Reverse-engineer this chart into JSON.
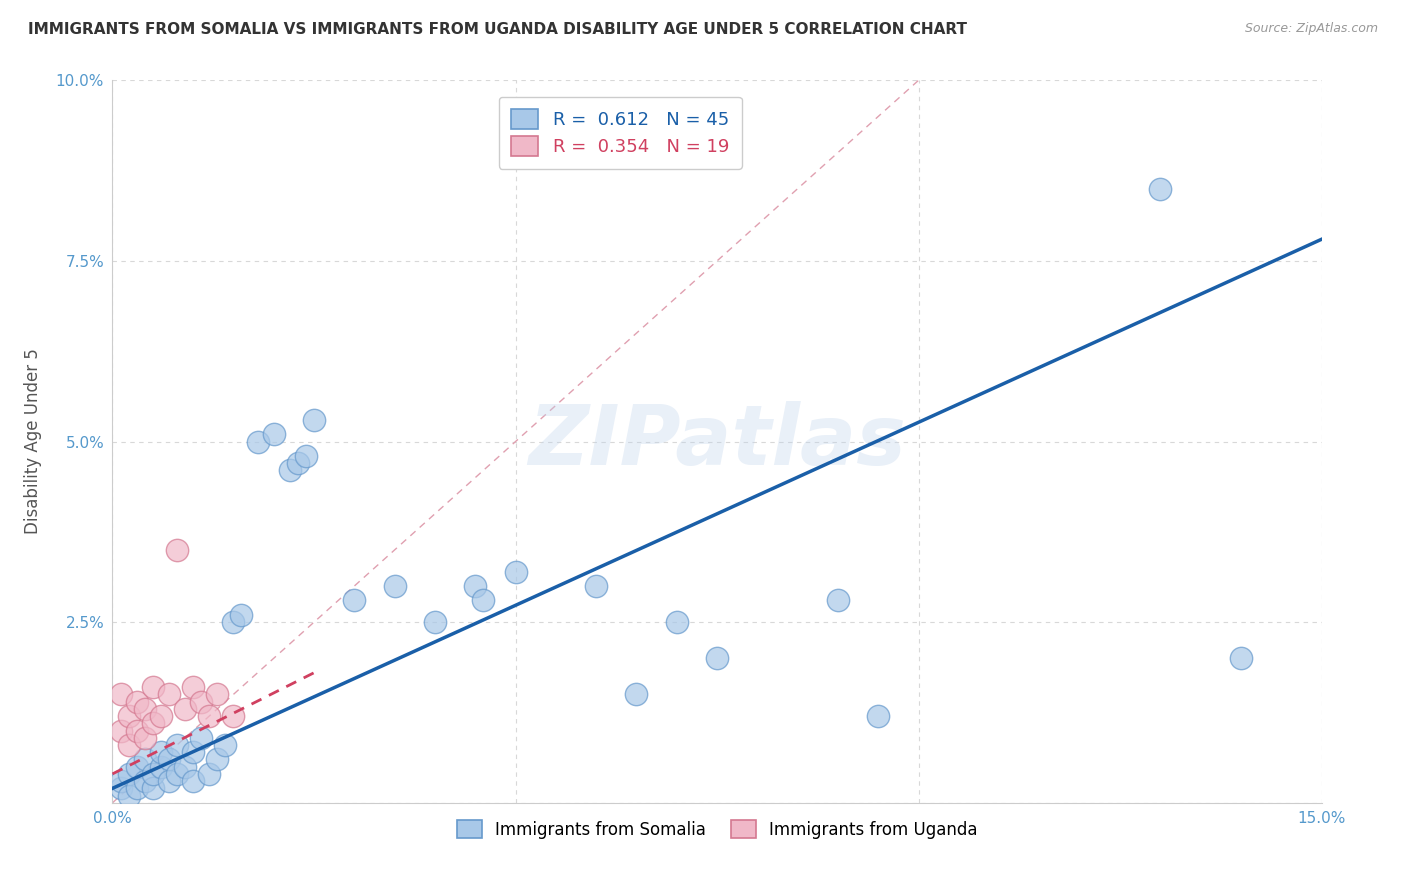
{
  "title": "IMMIGRANTS FROM SOMALIA VS IMMIGRANTS FROM UGANDA DISABILITY AGE UNDER 5 CORRELATION CHART",
  "source": "Source: ZipAtlas.com",
  "ylabel": "Disability Age Under 5",
  "xlim": [
    0.0,
    0.15
  ],
  "ylim": [
    0.0,
    0.1
  ],
  "somalia_color": "#a8c8e8",
  "somalia_edge": "#6699cc",
  "uganda_color": "#f0b8c8",
  "uganda_edge": "#d47890",
  "somalia_R": 0.612,
  "somalia_N": 45,
  "uganda_R": 0.354,
  "uganda_N": 19,
  "somalia_points": [
    [
      0.001,
      0.002
    ],
    [
      0.001,
      0.003
    ],
    [
      0.002,
      0.001
    ],
    [
      0.002,
      0.004
    ],
    [
      0.003,
      0.002
    ],
    [
      0.003,
      0.005
    ],
    [
      0.004,
      0.003
    ],
    [
      0.004,
      0.006
    ],
    [
      0.005,
      0.002
    ],
    [
      0.005,
      0.004
    ],
    [
      0.006,
      0.005
    ],
    [
      0.006,
      0.007
    ],
    [
      0.007,
      0.003
    ],
    [
      0.007,
      0.006
    ],
    [
      0.008,
      0.004
    ],
    [
      0.008,
      0.008
    ],
    [
      0.009,
      0.005
    ],
    [
      0.01,
      0.003
    ],
    [
      0.01,
      0.007
    ],
    [
      0.011,
      0.009
    ],
    [
      0.012,
      0.004
    ],
    [
      0.013,
      0.006
    ],
    [
      0.014,
      0.008
    ],
    [
      0.015,
      0.025
    ],
    [
      0.016,
      0.026
    ],
    [
      0.018,
      0.05
    ],
    [
      0.02,
      0.051
    ],
    [
      0.022,
      0.046
    ],
    [
      0.023,
      0.047
    ],
    [
      0.024,
      0.048
    ],
    [
      0.025,
      0.053
    ],
    [
      0.03,
      0.028
    ],
    [
      0.035,
      0.03
    ],
    [
      0.04,
      0.025
    ],
    [
      0.045,
      0.03
    ],
    [
      0.046,
      0.028
    ],
    [
      0.05,
      0.032
    ],
    [
      0.06,
      0.03
    ],
    [
      0.065,
      0.015
    ],
    [
      0.07,
      0.025
    ],
    [
      0.075,
      0.02
    ],
    [
      0.09,
      0.028
    ],
    [
      0.095,
      0.012
    ],
    [
      0.13,
      0.085
    ],
    [
      0.14,
      0.02
    ]
  ],
  "uganda_points": [
    [
      0.001,
      0.01
    ],
    [
      0.001,
      0.015
    ],
    [
      0.002,
      0.008
    ],
    [
      0.002,
      0.012
    ],
    [
      0.003,
      0.01
    ],
    [
      0.003,
      0.014
    ],
    [
      0.004,
      0.009
    ],
    [
      0.004,
      0.013
    ],
    [
      0.005,
      0.011
    ],
    [
      0.005,
      0.016
    ],
    [
      0.006,
      0.012
    ],
    [
      0.007,
      0.015
    ],
    [
      0.008,
      0.035
    ],
    [
      0.009,
      0.013
    ],
    [
      0.01,
      0.016
    ],
    [
      0.011,
      0.014
    ],
    [
      0.012,
      0.012
    ],
    [
      0.013,
      0.015
    ],
    [
      0.015,
      0.012
    ]
  ],
  "somalia_line_color": "#1a5fa8",
  "uganda_line_color": "#d04060",
  "diagonal_color": "#c8c8d8",
  "watermark": "ZIPatlas",
  "background_color": "#ffffff",
  "grid_color": "#d8d8d8"
}
